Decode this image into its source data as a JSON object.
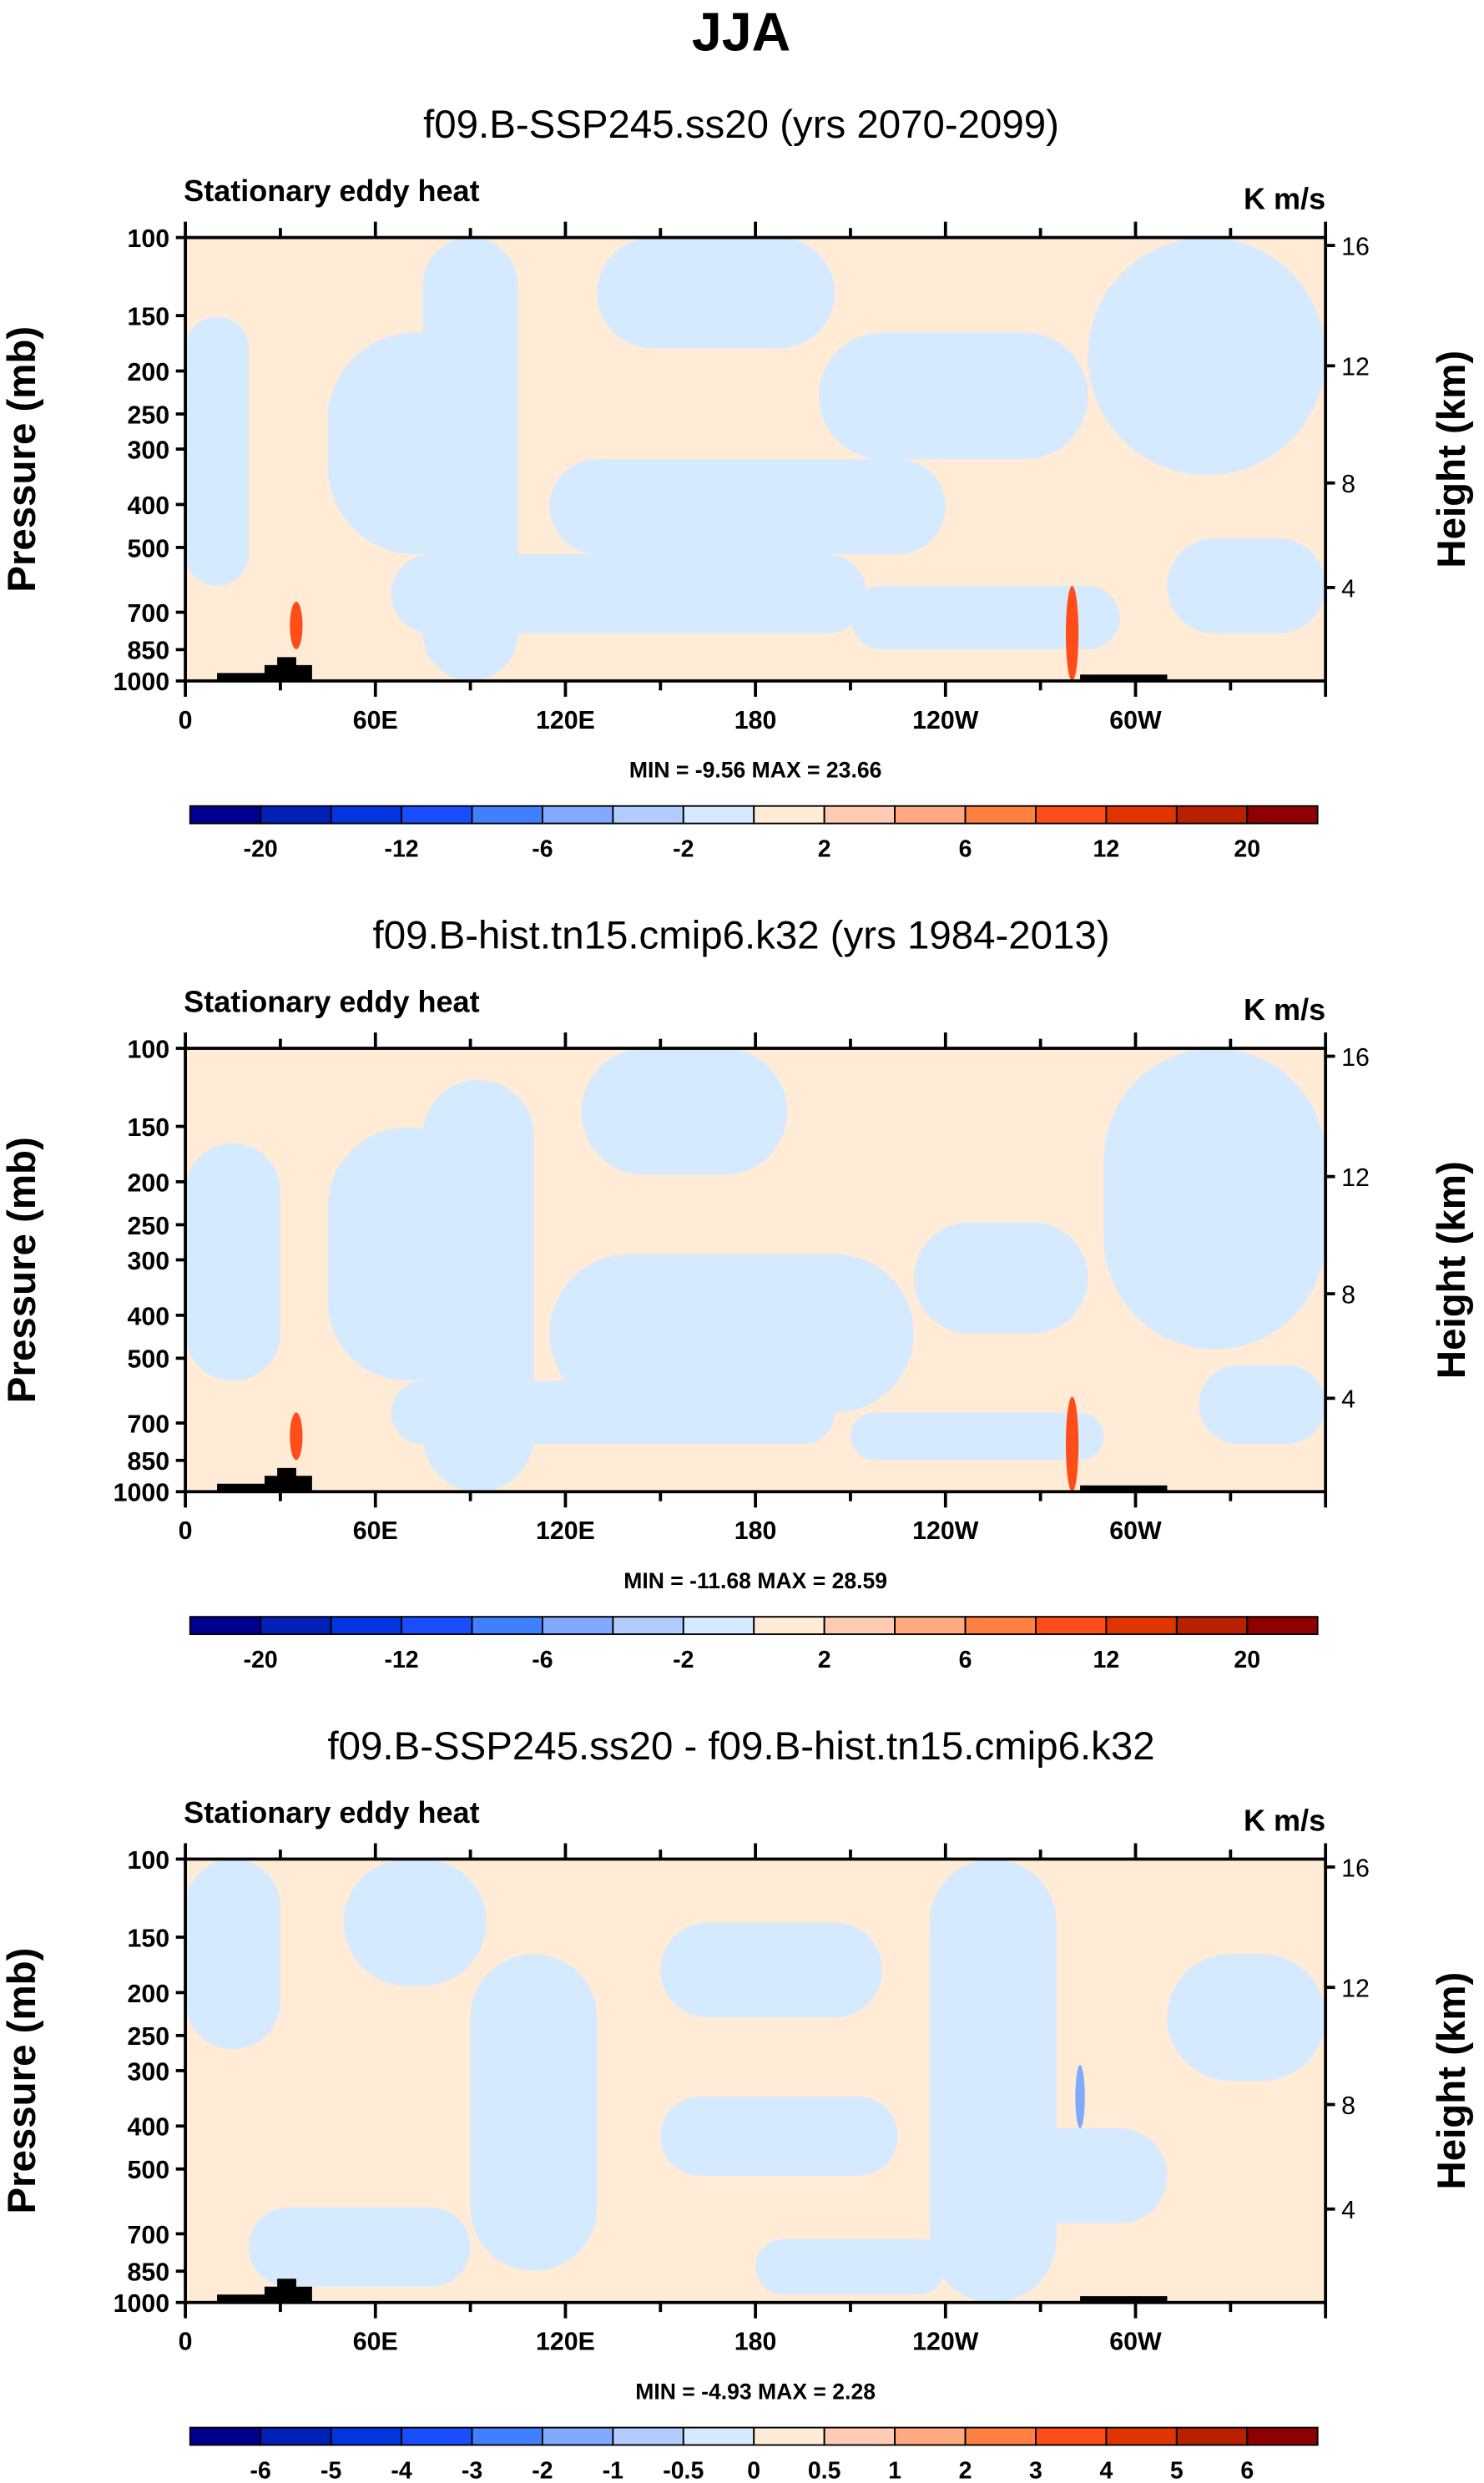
{
  "main_title": "JJA",
  "chart_data": [
    {
      "type": "heatmap",
      "title": "f09.B-SSP245.ss20 (yrs 2070-2099)",
      "left_label": "Stationary eddy heat",
      "units": "K m/s",
      "ylabel": "Pressure (mb)",
      "ylabel_right": "Height (km)",
      "y_ticks": [
        "100",
        "150",
        "200",
        "250",
        "300",
        "400",
        "500",
        "700",
        "850",
        "1000"
      ],
      "y_right_ticks": [
        "16",
        "12",
        "8",
        "4"
      ],
      "x_ticks": [
        "0",
        "60E",
        "120E",
        "180",
        "120W",
        "60W"
      ],
      "min_max": "MIN = -9.56  MAX = 23.66",
      "colorbar_labels": [
        "-20",
        "-12",
        "-6",
        "-2",
        "2",
        "6",
        "12",
        "20"
      ],
      "blues": [
        [
          0,
          50,
          40,
          170
        ],
        [
          90,
          60,
          110,
          140
        ],
        [
          150,
          0,
          60,
          280
        ],
        [
          260,
          0,
          150,
          70
        ],
        [
          230,
          140,
          250,
          60
        ],
        [
          400,
          60,
          170,
          80
        ],
        [
          570,
          0,
          150,
          150
        ],
        [
          130,
          200,
          300,
          50
        ],
        [
          420,
          220,
          170,
          40
        ],
        [
          620,
          190,
          100,
          60
        ]
      ],
      "reds": [
        [
          560,
          220,
          8,
          60
        ],
        [
          70,
          230,
          8,
          30
        ]
      ]
    },
    {
      "type": "heatmap",
      "title": "f09.B-hist.tn15.cmip6.k32 (yrs 1984-2013)",
      "left_label": "Stationary eddy heat",
      "units": "K m/s",
      "ylabel": "Pressure (mb)",
      "ylabel_right": "Height (km)",
      "y_ticks": [
        "100",
        "150",
        "200",
        "250",
        "300",
        "400",
        "500",
        "700",
        "850",
        "1000"
      ],
      "y_right_ticks": [
        "16",
        "12",
        "8",
        "4"
      ],
      "x_ticks": [
        "0",
        "60E",
        "120E",
        "180",
        "120W",
        "60W"
      ],
      "min_max": "MIN = -11.68  MAX = 28.59",
      "colorbar_labels": [
        "-20",
        "-12",
        "-6",
        "-2",
        "2",
        "6",
        "12",
        "20"
      ],
      "blues": [
        [
          0,
          60,
          60,
          150
        ],
        [
          90,
          50,
          100,
          160
        ],
        [
          150,
          20,
          70,
          260
        ],
        [
          250,
          0,
          130,
          80
        ],
        [
          230,
          130,
          230,
          100
        ],
        [
          460,
          110,
          110,
          70
        ],
        [
          580,
          0,
          140,
          190
        ],
        [
          130,
          210,
          280,
          40
        ],
        [
          420,
          230,
          160,
          30
        ],
        [
          640,
          200,
          80,
          50
        ]
      ],
      "reds": [
        [
          560,
          220,
          8,
          60
        ],
        [
          70,
          230,
          8,
          30
        ]
      ]
    },
    {
      "type": "heatmap",
      "title": "f09.B-SSP245.ss20 - f09.B-hist.tn15.cmip6.k32",
      "left_label": "Stationary eddy heat",
      "units": "K m/s",
      "ylabel": "Pressure (mb)",
      "ylabel_right": "Height (km)",
      "y_ticks": [
        "100",
        "150",
        "200",
        "250",
        "300",
        "400",
        "500",
        "700",
        "850",
        "1000"
      ],
      "y_right_ticks": [
        "16",
        "12",
        "8",
        "4"
      ],
      "x_ticks": [
        "0",
        "60E",
        "120E",
        "180",
        "120W",
        "60W"
      ],
      "min_max": "MIN = -4.93  MAX = 2.28",
      "colorbar_labels": [
        "-6",
        "-5",
        "-4",
        "-3",
        "-2",
        "-1",
        "-0.5",
        "0",
        "0.5",
        "1",
        "2",
        "3",
        "4",
        "5",
        "6"
      ],
      "blues": [
        [
          0,
          0,
          60,
          120
        ],
        [
          100,
          0,
          90,
          80
        ],
        [
          180,
          60,
          80,
          200
        ],
        [
          300,
          40,
          140,
          60
        ],
        [
          300,
          150,
          150,
          50
        ],
        [
          470,
          0,
          80,
          280
        ],
        [
          480,
          170,
          140,
          60
        ],
        [
          620,
          60,
          100,
          80
        ],
        [
          40,
          220,
          140,
          50
        ],
        [
          360,
          240,
          120,
          35
        ]
      ],
      "reds": [
        [
          565,
          130,
          6,
          40
        ]
      ]
    }
  ],
  "colors": [
    "#00008f",
    "#0020b8",
    "#0035e0",
    "#1a4dff",
    "#4080ff",
    "#80aaff",
    "#b3ccff",
    "#d6eaff",
    "#ffebd6",
    "#ffccb3",
    "#ffaa80",
    "#ff8040",
    "#ff4d1a",
    "#e03500",
    "#b82000",
    "#8f0000"
  ]
}
